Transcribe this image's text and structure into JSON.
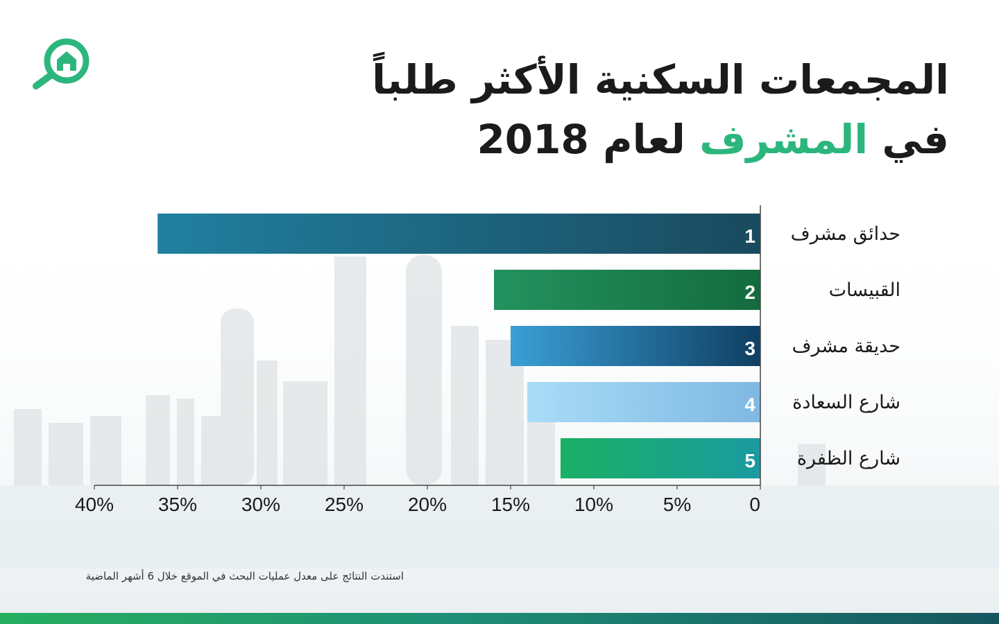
{
  "title": {
    "line1": "المجمعات السكنية الأكثر طلباً",
    "line2_prefix": "في",
    "line2_accent": "المشرف",
    "line2_suffix": "لعام 2018"
  },
  "footnote": "استندت النتائج على معدل عمليات البحث في الموقع خلال 6 أشهر الماضية",
  "colors": {
    "accent": "#2cb67d",
    "bottom_bar_start": "#27ae60",
    "bottom_bar_end": "#16565f"
  },
  "chart_data": {
    "type": "bar",
    "orientation": "horizontal",
    "direction": "right-to-left",
    "categories": [
      "حدائق مشرف",
      "القبيسات",
      "حديقة مشرف",
      "شارع السعادة",
      "شارع الظفرة"
    ],
    "ranks": [
      "1",
      "2",
      "3",
      "4",
      "5"
    ],
    "values": [
      36.2,
      16.0,
      15.0,
      14.0,
      12.0
    ],
    "xlim": [
      0,
      40
    ],
    "xticks": [
      0,
      5,
      10,
      15,
      20,
      25,
      30,
      35,
      40
    ],
    "xtick_labels": [
      "0",
      "5%",
      "10%",
      "15%",
      "20%",
      "25%",
      "30%",
      "35%",
      "40%"
    ],
    "gradients": [
      [
        "#1a4a5e",
        "#2080a0"
      ],
      [
        "#146b3e",
        "#23925f"
      ],
      [
        "#0f3f63",
        "#3a9fd6"
      ],
      [
        "#7fb8e2",
        "#a8dcf7"
      ],
      [
        "#1b9aa0",
        "#1ab064"
      ]
    ],
    "title": "",
    "xlabel": "",
    "ylabel": "",
    "grid": false
  }
}
